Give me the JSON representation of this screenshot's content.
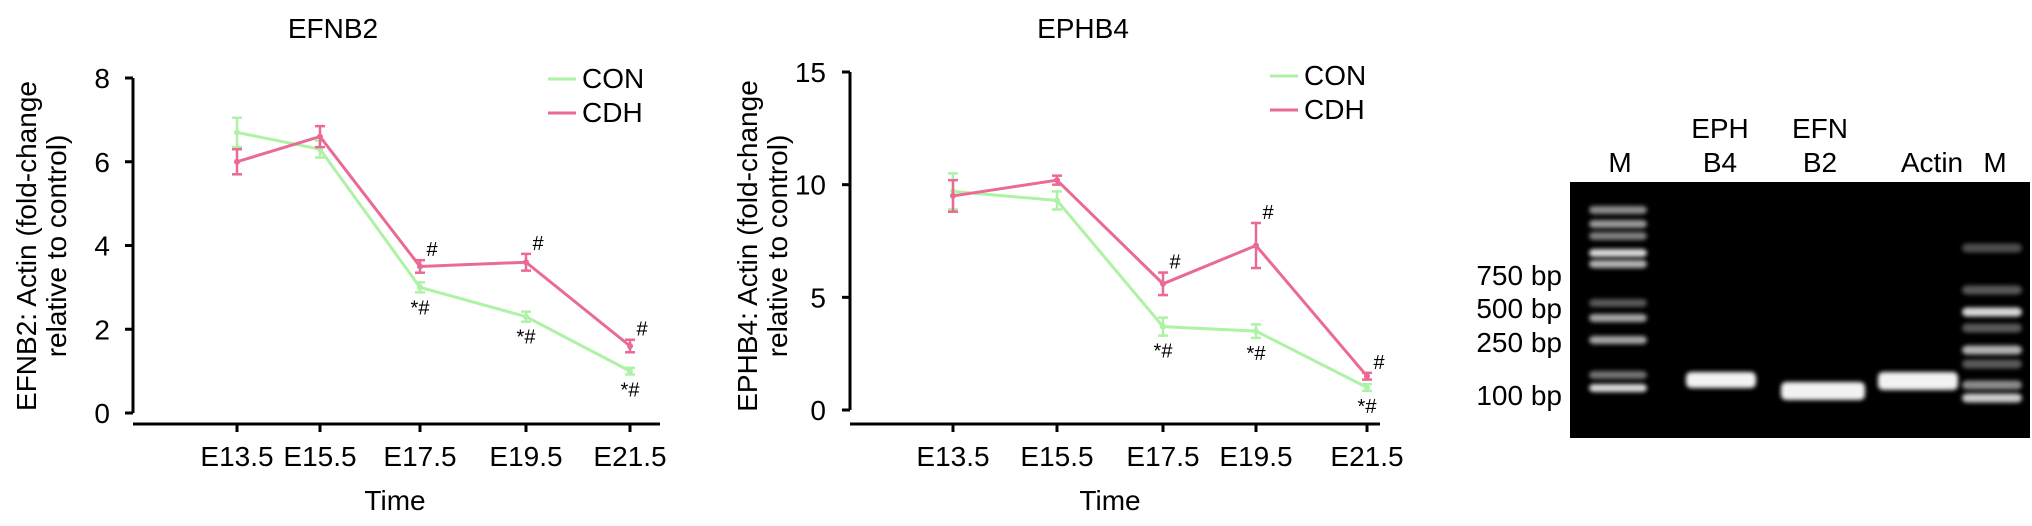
{
  "chart_data": [
    {
      "type": "line",
      "title": "EFNB2",
      "xlabel": "Time",
      "ylabel_lines": [
        "EFNB2: Actin (fold-change",
        "relative to control)"
      ],
      "categories": [
        "E13.5",
        "E15.5",
        "E17.5",
        "E19.5",
        "E21.5"
      ],
      "ylim": [
        0,
        8
      ],
      "yticks": [
        0,
        2,
        4,
        6,
        8
      ],
      "legend_position": "top-right",
      "series": [
        {
          "name": "CON",
          "color": "#aef2a6",
          "values": [
            6.7,
            6.3,
            3.0,
            2.3,
            1.0
          ],
          "errors": [
            0.35,
            0.2,
            0.12,
            0.12,
            0.08
          ],
          "marks": [
            "",
            "",
            "*#",
            "*#",
            "*#"
          ]
        },
        {
          "name": "CDH",
          "color": "#ea6a94",
          "values": [
            6.0,
            6.6,
            3.5,
            3.6,
            1.6
          ],
          "errors": [
            0.3,
            0.25,
            0.15,
            0.2,
            0.15
          ],
          "marks": [
            "",
            "",
            "#",
            "#",
            "#"
          ]
        }
      ]
    },
    {
      "type": "line",
      "title": "EPHB4",
      "xlabel": "Time",
      "ylabel_lines": [
        "EPHB4: Actin (fold-change",
        "relative to control)"
      ],
      "categories": [
        "E13.5",
        "E15.5",
        "E17.5",
        "E19.5",
        "E21.5"
      ],
      "ylim": [
        0,
        15
      ],
      "yticks": [
        0,
        5,
        10,
        15
      ],
      "legend_position": "top-right",
      "series": [
        {
          "name": "CON",
          "color": "#aef2a6",
          "values": [
            9.7,
            9.3,
            3.7,
            3.5,
            1.0
          ],
          "errors": [
            0.8,
            0.4,
            0.4,
            0.3,
            0.15
          ],
          "marks": [
            "",
            "",
            "*#",
            "*#",
            "*#"
          ]
        },
        {
          "name": "CDH",
          "color": "#ea6a94",
          "values": [
            9.5,
            10.2,
            5.6,
            7.3,
            1.5
          ],
          "errors": [
            0.7,
            0.2,
            0.5,
            1.0,
            0.15
          ],
          "marks": [
            "",
            "",
            "#",
            "#",
            "#"
          ]
        }
      ]
    }
  ],
  "gel": {
    "lane_labels": [
      {
        "lines": [
          "M"
        ]
      },
      {
        "lines": [
          "EPH",
          "B4"
        ]
      },
      {
        "lines": [
          "EFN",
          "B2"
        ]
      },
      {
        "lines": [
          "Actin"
        ]
      },
      {
        "lines": [
          "M"
        ]
      }
    ],
    "marker_labels": [
      "750 bp",
      "500 bp",
      "250 bp",
      "100 bp"
    ]
  }
}
